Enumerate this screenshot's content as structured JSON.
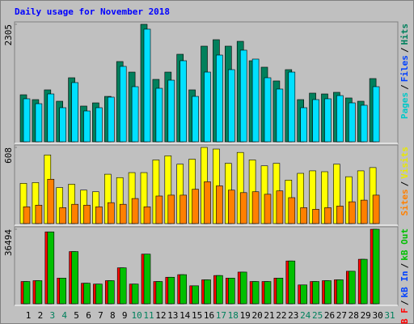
{
  "chart_data": {
    "type": "bar",
    "title": "Daily usage for November 2018",
    "legend_separator": "/",
    "categories": [
      "1",
      "2",
      "3",
      "4",
      "5",
      "6",
      "7",
      "8",
      "9",
      "10",
      "11",
      "12",
      "13",
      "14",
      "15",
      "16",
      "17",
      "18",
      "19",
      "20",
      "21",
      "22",
      "23",
      "24",
      "25",
      "26",
      "27",
      "28",
      "29",
      "30",
      "31"
    ],
    "category_colors": [
      "#000000",
      "#000000",
      "#00805c",
      "#00805c",
      "#000000",
      "#000000",
      "#000000",
      "#000000",
      "#000000",
      "#00805c",
      "#00805c",
      "#000000",
      "#000000",
      "#000000",
      "#000000",
      "#000000",
      "#00805c",
      "#00805c",
      "#000000",
      "#000000",
      "#000000",
      "#000000",
      "#000000",
      "#00805c",
      "#00805c",
      "#000000",
      "#000000",
      "#000000",
      "#000000",
      "#000000",
      "#00805c"
    ],
    "panels": [
      {
        "ylim": [
          0,
          2305
        ],
        "yticks": [
          2305
        ],
        "legend": [
          {
            "name": "Pages",
            "color": "#00c8c8"
          },
          {
            "name": "Files",
            "color": "#0040ff"
          },
          {
            "name": "Hits",
            "color": "#00805c"
          }
        ],
        "series": [
          {
            "name": "Hits",
            "color": "#00805c",
            "values": [
              922,
              827,
              1018,
              795,
              1256,
              700,
              763,
              890,
              1574,
              1367,
              2305,
              1224,
              1367,
              1717,
              1018,
              1876,
              2003,
              1876,
              1971,
              1590,
              1463,
              1193,
              1415,
              827,
              954,
              938,
              970,
              859,
              795,
              1240,
              null
            ]
          },
          {
            "name": "Pages",
            "color": "#00e0ff",
            "values": [
              843,
              747,
              938,
              668,
              1161,
              604,
              668,
              875,
              1479,
              1081,
              2210,
              1049,
              1208,
              1590,
              890,
              1367,
              1701,
              1415,
              1797,
              1622,
              1256,
              1034,
              1367,
              668,
              827,
              843,
              906,
              763,
              716,
              1081,
              null
            ]
          }
        ]
      },
      {
        "ylim": [
          0,
          608
        ],
        "yticks": [
          608
        ],
        "legend": [
          {
            "name": "Sites",
            "color": "#ff8000"
          },
          {
            "name": "Visits",
            "color": "#e8e800"
          }
        ],
        "series": [
          {
            "name": "Visits",
            "color": "#ffff00",
            "values": [
              321,
              327,
              548,
              287,
              314,
              267,
              254,
              394,
              367,
              407,
              407,
              508,
              541,
              474,
              514,
              608,
              595,
              481,
              568,
              508,
              461,
              481,
              347,
              401,
              421,
              414,
              474,
              374,
              421,
              447,
              null
            ]
          },
          {
            "name": "Sites",
            "color": "#ff8000",
            "values": [
              134,
              147,
              354,
              127,
              154,
              147,
              134,
              167,
              154,
              200,
              134,
              220,
              227,
              227,
              274,
              334,
              301,
              267,
              247,
              254,
              234,
              261,
              207,
              127,
              114,
              127,
              140,
              174,
              187,
              227,
              null
            ]
          }
        ]
      },
      {
        "ylim": [
          0,
          36494
        ],
        "yticks": [
          36494
        ],
        "legend": [
          {
            "name": "kB F",
            "color": "#ff0000"
          },
          {
            "name": "kB In",
            "color": "#0040ff"
          },
          {
            "name": "kB Out",
            "color": "#00c000"
          }
        ],
        "series": [
          {
            "name": "kB F",
            "color": "#ff0000",
            "values": [
              10894,
              11313,
              35196,
              12570,
              25559,
              10056,
              9637,
              11313,
              17598,
              9637,
              24302,
              10894,
              12989,
              14246,
              8799,
              11732,
              13827,
              12570,
              15503,
              10894,
              10894,
              12570,
              20950,
              9218,
              10894,
              11313,
              11732,
              15922,
              21788,
              36494,
              null
            ]
          },
          {
            "name": "kB Out",
            "color": "#00c000",
            "values": [
              10894,
              11313,
              35196,
              12570,
              25559,
              10056,
              9637,
              11313,
              17598,
              9637,
              24302,
              10894,
              12989,
              14246,
              8799,
              11732,
              13827,
              12570,
              15503,
              10894,
              10894,
              12570,
              20950,
              9218,
              10894,
              11313,
              11732,
              15922,
              21788,
              36494,
              null
            ]
          }
        ]
      }
    ]
  }
}
